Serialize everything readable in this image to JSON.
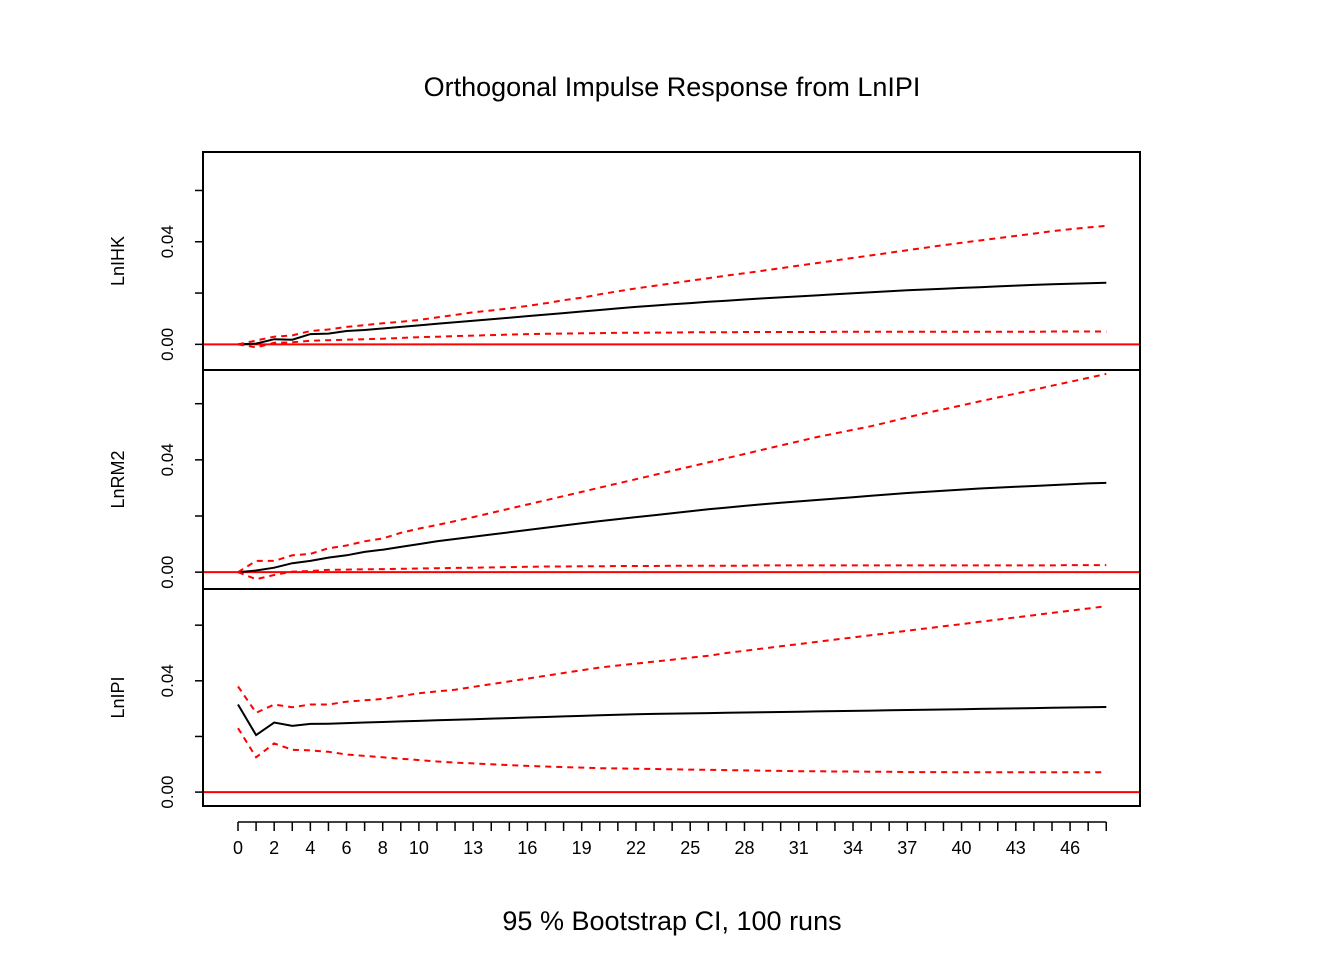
{
  "chart_data": {
    "type": "line",
    "title": "Orthogonal Impulse Response from LnIPI",
    "xlabel": "95 % Bootstrap CI,  100 runs",
    "x": [
      0,
      1,
      2,
      3,
      4,
      5,
      6,
      7,
      8,
      9,
      10,
      11,
      12,
      13,
      14,
      15,
      16,
      17,
      18,
      19,
      20,
      21,
      22,
      23,
      24,
      25,
      26,
      27,
      28,
      29,
      30,
      31,
      32,
      33,
      34,
      35,
      36,
      37,
      38,
      39,
      40,
      41,
      42,
      43,
      44,
      45,
      46,
      47,
      48
    ],
    "x_tick_labels": [
      "0",
      "2",
      "4",
      "6",
      "8",
      "10",
      "13",
      "16",
      "19",
      "22",
      "25",
      "28",
      "31",
      "34",
      "37",
      "40",
      "43",
      "46"
    ],
    "xlim": [
      0,
      48
    ],
    "grid": false,
    "colors": {
      "response": "#000000",
      "ci": "#ff0000",
      "zero_line": "#ff0000"
    },
    "panels": [
      {
        "ylabel": "LnIHK",
        "ylim": [
          -0.01,
          0.075
        ],
        "y_tick_labels": [
          "0.00",
          "0.04"
        ],
        "series": [
          {
            "role": "response",
            "values": [
              0.0,
              0.0003,
              0.002,
              0.0018,
              0.004,
              0.0042,
              0.0052,
              0.0056,
              0.0062,
              0.0068,
              0.0074,
              0.008,
              0.0086,
              0.0092,
              0.0098,
              0.0104,
              0.011,
              0.0116,
              0.0122,
              0.0128,
              0.0134,
              0.014,
              0.0146,
              0.0151,
              0.0156,
              0.0161,
              0.0166,
              0.017,
              0.0175,
              0.0179,
              0.0183,
              0.0187,
              0.0191,
              0.0195,
              0.0199,
              0.0203,
              0.0207,
              0.0211,
              0.0214,
              0.0217,
              0.022,
              0.0223,
              0.0226,
              0.0229,
              0.0232,
              0.0234,
              0.0236,
              0.0238,
              0.024
            ]
          },
          {
            "role": "ci_upper",
            "values": [
              0.0,
              0.0015,
              0.003,
              0.0035,
              0.0052,
              0.0058,
              0.0068,
              0.0075,
              0.0082,
              0.0088,
              0.0095,
              0.0105,
              0.0115,
              0.0125,
              0.0132,
              0.014,
              0.015,
              0.016,
              0.0172,
              0.0182,
              0.0195,
              0.0207,
              0.0218,
              0.0228,
              0.0238,
              0.0248,
              0.0258,
              0.0268,
              0.0277,
              0.0287,
              0.0297,
              0.0307,
              0.0317,
              0.0327,
              0.0337,
              0.0347,
              0.0357,
              0.0367,
              0.0377,
              0.0387,
              0.0396,
              0.0405,
              0.0414,
              0.0423,
              0.0432,
              0.0441,
              0.0449,
              0.0456,
              0.0462
            ]
          },
          {
            "role": "ci_lower",
            "values": [
              0.0,
              -0.0012,
              0.0006,
              0.0008,
              0.0014,
              0.0016,
              0.0018,
              0.002,
              0.0022,
              0.0025,
              0.0028,
              0.003,
              0.0032,
              0.0034,
              0.0036,
              0.0038,
              0.004,
              0.0041,
              0.0042,
              0.0043,
              0.0044,
              0.0045,
              0.0045,
              0.0046,
              0.0046,
              0.0047,
              0.0047,
              0.0047,
              0.0048,
              0.0048,
              0.0048,
              0.0048,
              0.0048,
              0.0049,
              0.0049,
              0.0049,
              0.0049,
              0.0049,
              0.0049,
              0.0049,
              0.0049,
              0.0049,
              0.0049,
              0.0049,
              0.0049,
              0.005,
              0.005,
              0.005,
              0.005
            ]
          }
        ]
      },
      {
        "ylabel": "LnRM2",
        "ylim": [
          -0.006,
          0.072
        ],
        "y_tick_labels": [
          "0.00",
          "0.04"
        ],
        "series": [
          {
            "role": "response",
            "values": [
              0.0,
              0.0006,
              0.0016,
              0.0032,
              0.004,
              0.0052,
              0.006,
              0.0072,
              0.008,
              0.009,
              0.01,
              0.011,
              0.0118,
              0.0126,
              0.0134,
              0.0142,
              0.015,
              0.0158,
              0.0166,
              0.0174,
              0.0182,
              0.0189,
              0.0196,
              0.0203,
              0.021,
              0.0217,
              0.0224,
              0.023,
              0.0236,
              0.0242,
              0.0247,
              0.0252,
              0.0257,
              0.0262,
              0.0267,
              0.0272,
              0.0277,
              0.0282,
              0.0286,
              0.029,
              0.0294,
              0.0298,
              0.0301,
              0.0304,
              0.0307,
              0.031,
              0.0313,
              0.0316,
              0.0318
            ]
          },
          {
            "role": "ci_upper",
            "values": [
              0.0,
              0.004,
              0.004,
              0.006,
              0.0065,
              0.0085,
              0.0095,
              0.011,
              0.012,
              0.014,
              0.0155,
              0.0168,
              0.0182,
              0.0196,
              0.0211,
              0.0226,
              0.0241,
              0.0256,
              0.0271,
              0.0286,
              0.0301,
              0.0316,
              0.0331,
              0.0346,
              0.0361,
              0.0376,
              0.0391,
              0.0406,
              0.0421,
              0.0436,
              0.0451,
              0.0466,
              0.0481,
              0.0494,
              0.0507,
              0.052,
              0.0535,
              0.0551,
              0.0566,
              0.058,
              0.0594,
              0.0608,
              0.0622,
              0.0636,
              0.065,
              0.0664,
              0.0678,
              0.0692,
              0.0706
            ]
          },
          {
            "role": "ci_lower",
            "values": [
              0.0,
              -0.0025,
              -0.001,
              0.0002,
              0.0004,
              0.0008,
              0.0009,
              0.001,
              0.0011,
              0.0012,
              0.0013,
              0.0014,
              0.0015,
              0.0016,
              0.0017,
              0.0018,
              0.0019,
              0.002,
              0.002,
              0.0021,
              0.0021,
              0.0022,
              0.0022,
              0.0022,
              0.0023,
              0.0023,
              0.0023,
              0.0023,
              0.0023,
              0.0024,
              0.0024,
              0.0024,
              0.0024,
              0.0024,
              0.0024,
              0.0024,
              0.0024,
              0.0024,
              0.0024,
              0.0024,
              0.0024,
              0.0024,
              0.0024,
              0.0024,
              0.0024,
              0.0024,
              0.0025,
              0.0025,
              0.0025
            ]
          }
        ]
      },
      {
        "ylabel": "LnIPI",
        "ylim": [
          -0.005,
          0.073
        ],
        "y_tick_labels": [
          "0.00",
          "0.04"
        ],
        "series": [
          {
            "role": "response",
            "values": [
              0.0315,
              0.0205,
              0.025,
              0.0238,
              0.0245,
              0.0246,
              0.0248,
              0.025,
              0.0252,
              0.0254,
              0.0256,
              0.0258,
              0.026,
              0.0262,
              0.0264,
              0.0266,
              0.0268,
              0.027,
              0.0272,
              0.0274,
              0.0276,
              0.0278,
              0.028,
              0.0281,
              0.0282,
              0.0283,
              0.0284,
              0.0285,
              0.0286,
              0.0287,
              0.0288,
              0.0289,
              0.029,
              0.0291,
              0.0292,
              0.0293,
              0.0294,
              0.0295,
              0.0296,
              0.0297,
              0.0298,
              0.0299,
              0.03,
              0.0301,
              0.0302,
              0.0303,
              0.0304,
              0.0305,
              0.0306
            ]
          },
          {
            "role": "ci_upper",
            "values": [
              0.038,
              0.0285,
              0.0315,
              0.0305,
              0.0315,
              0.0315,
              0.0325,
              0.033,
              0.0335,
              0.0345,
              0.0355,
              0.0362,
              0.0368,
              0.0378,
              0.0388,
              0.0398,
              0.0408,
              0.0418,
              0.0428,
              0.0438,
              0.0448,
              0.0455,
              0.0462,
              0.0469,
              0.0476,
              0.0483,
              0.049,
              0.05,
              0.0508,
              0.0516,
              0.0524,
              0.0532,
              0.054,
              0.0548,
              0.0556,
              0.0564,
              0.0572,
              0.058,
              0.0588,
              0.0596,
              0.0604,
              0.0612,
              0.062,
              0.0628,
              0.0636,
              0.0644,
              0.0652,
              0.066,
              0.0668
            ]
          },
          {
            "role": "ci_lower",
            "values": [
              0.023,
              0.0125,
              0.0175,
              0.0152,
              0.015,
              0.0145,
              0.0135,
              0.013,
              0.0125,
              0.012,
              0.0115,
              0.011,
              0.0106,
              0.0103,
              0.01,
              0.0097,
              0.0094,
              0.0092,
              0.009,
              0.0088,
              0.0086,
              0.0085,
              0.0084,
              0.0083,
              0.0082,
              0.0081,
              0.008,
              0.0079,
              0.0078,
              0.0077,
              0.0076,
              0.0075,
              0.0075,
              0.0074,
              0.0074,
              0.0073,
              0.0073,
              0.0072,
              0.0072,
              0.0072,
              0.0071,
              0.0071,
              0.0071,
              0.0071,
              0.0071,
              0.0071,
              0.0071,
              0.0071,
              0.0071
            ]
          }
        ]
      }
    ]
  }
}
